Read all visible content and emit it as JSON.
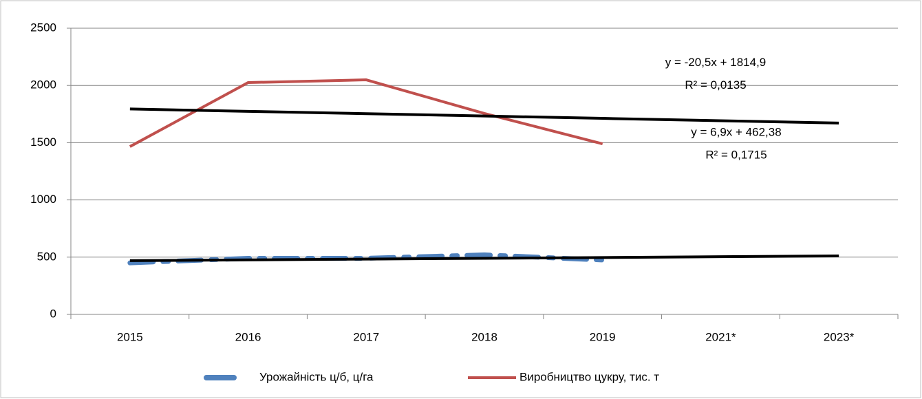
{
  "chart_data": {
    "type": "line",
    "categories": [
      "2015",
      "2016",
      "2017",
      "2018",
      "2019",
      "2021*",
      "2023*"
    ],
    "series": [
      {
        "name": "Урожайність ц/б, ц/га",
        "color": "#4f81bd",
        "values": [
          450,
          490,
          490,
          520,
          475,
          null,
          null
        ]
      },
      {
        "name": "Виробництво цукру, тис. т",
        "color": "#c0504d",
        "values": [
          1466,
          2025,
          2049,
          1755,
          1490,
          null,
          null
        ]
      }
    ],
    "trendlines": [
      {
        "color": "#000000",
        "values": [
          1794.4,
          1773.9,
          1753.4,
          1732.9,
          1712.4,
          1691.9,
          1671.4
        ],
        "equation": "y = -20,5x + 1814,9",
        "r2": "R² = 0,0135"
      },
      {
        "color": "#000000",
        "values": [
          469.28,
          476.18,
          483.08,
          489.98,
          496.88,
          503.78,
          510.68
        ],
        "equation": "y = 6,9x + 462,38",
        "r2": "R² = 0,1715"
      }
    ],
    "ylim": [
      0,
      2500
    ],
    "yticks": [
      0,
      500,
      1000,
      1500,
      2000,
      2500
    ],
    "grid": true,
    "legend": "bottom"
  }
}
